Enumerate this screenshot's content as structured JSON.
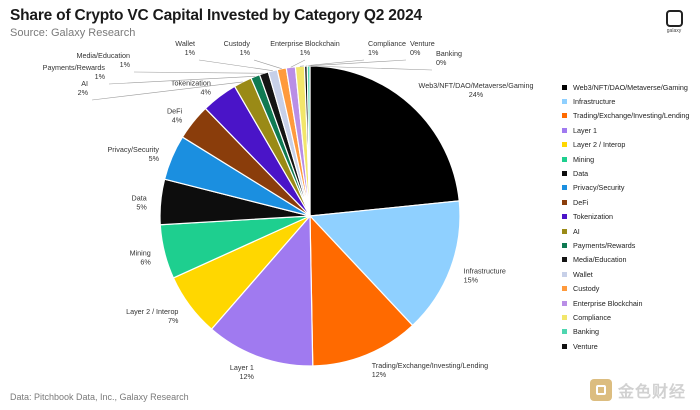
{
  "header": {
    "title": "Share of Crypto VC Capital Invested by Category Q2 2024",
    "subtitle": "Source: Galaxy Research",
    "logo_text": "galaxy"
  },
  "footer": {
    "source": "Data: Pitchbook Data, Inc., Galaxy Research",
    "watermark_text": "金色财经"
  },
  "chart_data": {
    "type": "pie",
    "title": "Share of Crypto VC Capital Invested by Category Q2 2024",
    "legend_position": "right",
    "slices": [
      {
        "name": "Web3/NFT/DAO/Metaverse/Gaming",
        "label": "24%",
        "value": 24,
        "color": "#000000"
      },
      {
        "name": "Infrastructure",
        "label": "15%",
        "value": 15,
        "color": "#8fd0ff"
      },
      {
        "name": "Trading/Exchange/Investing/Lending",
        "label": "12%",
        "value": 12,
        "color": "#ff6a00"
      },
      {
        "name": "Layer 1",
        "label": "12%",
        "value": 12,
        "color": "#a07af0"
      },
      {
        "name": "Layer 2 / Interop",
        "label": "7%",
        "value": 7,
        "color": "#ffd700"
      },
      {
        "name": "Mining",
        "label": "6%",
        "value": 6,
        "color": "#1ecf8f"
      },
      {
        "name": "Data",
        "label": "5%",
        "value": 5,
        "color": "#0d0d0d"
      },
      {
        "name": "Privacy/Security",
        "label": "5%",
        "value": 5,
        "color": "#1b8fe0"
      },
      {
        "name": "DeFi",
        "label": "4%",
        "value": 4,
        "color": "#8a3d0b"
      },
      {
        "name": "Tokenization",
        "label": "4%",
        "value": 4,
        "color": "#4a14c8"
      },
      {
        "name": "AI",
        "label": "2%",
        "value": 2,
        "color": "#9a8a16"
      },
      {
        "name": "Payments/Rewards",
        "label": "1%",
        "value": 1,
        "color": "#0f7a52"
      },
      {
        "name": "Media/Education",
        "label": "1%",
        "value": 1,
        "color": "#141414"
      },
      {
        "name": "Wallet",
        "label": "1%",
        "value": 1,
        "color": "#c7d0e8"
      },
      {
        "name": "Custody",
        "label": "1%",
        "value": 1,
        "color": "#ff9a3c"
      },
      {
        "name": "Enterprise Blockchain",
        "label": "1%",
        "value": 1,
        "color": "#b98ee6"
      },
      {
        "name": "Compliance",
        "label": "1%",
        "value": 1,
        "color": "#f2e66a"
      },
      {
        "name": "Venture",
        "label": "0%",
        "value": 0.3,
        "color": "#111111"
      },
      {
        "name": "Banking",
        "label": "0%",
        "value": 0.3,
        "color": "#4fd6b0"
      }
    ],
    "legend": [
      {
        "name": "Web3/NFT/DAO/Metaverse/Gaming",
        "color": "#000000"
      },
      {
        "name": "Infrastructure",
        "color": "#8fd0ff"
      },
      {
        "name": "Trading/Exchange/Investing/Lending",
        "color": "#ff6a00"
      },
      {
        "name": "Layer 1",
        "color": "#a07af0"
      },
      {
        "name": "Layer 2 / Interop",
        "color": "#ffd700"
      },
      {
        "name": "Mining",
        "color": "#1ecf8f"
      },
      {
        "name": "Data",
        "color": "#0d0d0d"
      },
      {
        "name": "Privacy/Security",
        "color": "#1b8fe0"
      },
      {
        "name": "DeFi",
        "color": "#8a3d0b"
      },
      {
        "name": "Tokenization",
        "color": "#4a14c8"
      },
      {
        "name": "AI",
        "color": "#9a8a16"
      },
      {
        "name": "Payments/Rewards",
        "color": "#0f7a52"
      },
      {
        "name": "Media/Education",
        "color": "#141414"
      },
      {
        "name": "Wallet",
        "color": "#c7d0e8"
      },
      {
        "name": "Custody",
        "color": "#ff9a3c"
      },
      {
        "name": "Enterprise Blockchain",
        "color": "#b98ee6"
      },
      {
        "name": "Compliance",
        "color": "#f2e66a"
      },
      {
        "name": "Banking",
        "color": "#4fd6b0"
      },
      {
        "name": "Venture",
        "color": "#111111"
      }
    ]
  }
}
